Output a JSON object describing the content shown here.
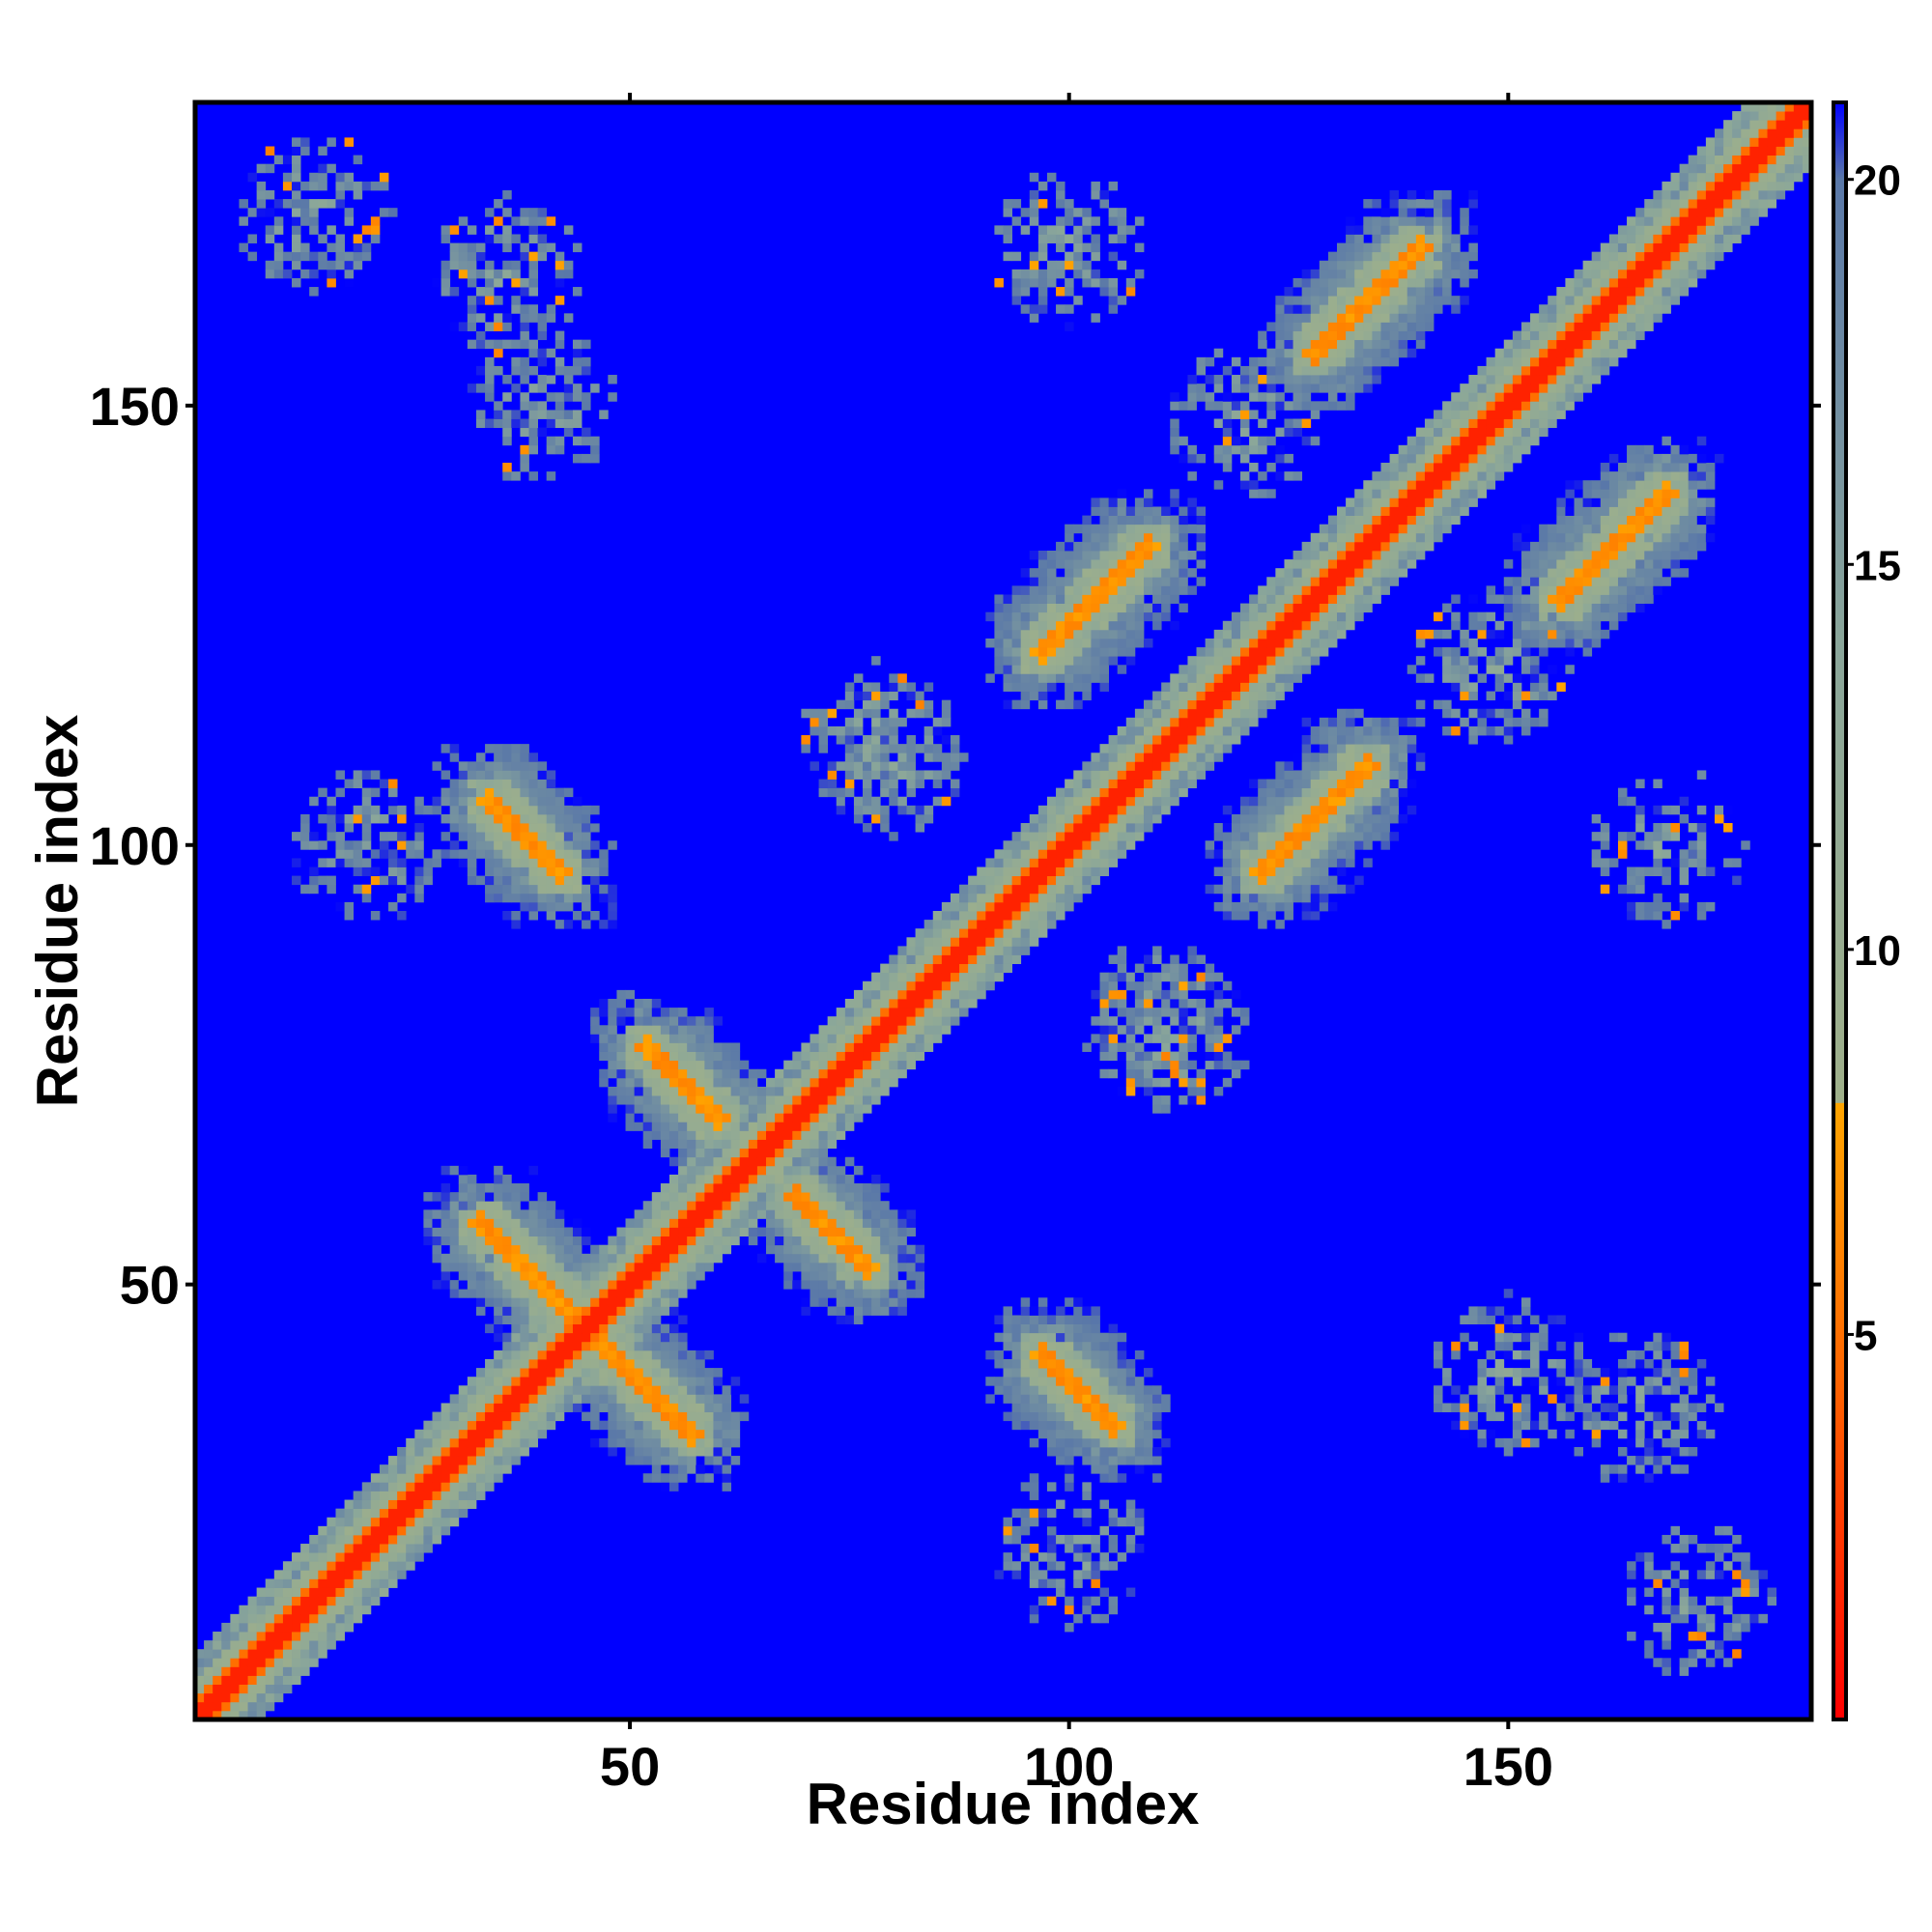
{
  "chart_data": {
    "type": "heatmap",
    "title": "",
    "xlabel": "Residue index",
    "ylabel": "Residue index",
    "xlim": [
      1,
      184
    ],
    "ylim": [
      1,
      184
    ],
    "x_ticks": [
      50,
      100,
      150
    ],
    "y_ticks": [
      50,
      100,
      150
    ],
    "n_residues": 184,
    "value_cap": 21,
    "colorbar": {
      "range": [
        0,
        21
      ],
      "ticks": [
        5,
        10,
        15,
        20
      ],
      "stops": [
        {
          "value": 0,
          "color": "#ff0000"
        },
        {
          "value": 4.5,
          "color": "#ff6600"
        },
        {
          "value": 8,
          "color": "#ffa500"
        },
        {
          "value": 8.01,
          "color": "#9fb08a"
        },
        {
          "value": 14,
          "color": "#8aa69a"
        },
        {
          "value": 20,
          "color": "#5a78a8"
        },
        {
          "value": 21,
          "color": "#0000ff"
        }
      ]
    },
    "background_color": "#0000ff",
    "contact_features": [
      {
        "kind": "diagonal"
      },
      {
        "kind": "antiparallel",
        "x_range": [
          33,
          57
        ],
        "y_range": [
          33,
          57
        ],
        "note": "X crossing near residue 45"
      },
      {
        "kind": "antiparallel",
        "x_range": [
          34,
          42
        ],
        "y_range": [
          97,
          105
        ]
      },
      {
        "kind": "antiparallel",
        "x_range": [
          52,
          60
        ],
        "y_range": [
          69,
          77
        ]
      },
      {
        "kind": "antiparallel",
        "x_range": [
          97,
          105
        ],
        "y_range": [
          34,
          42
        ]
      },
      {
        "kind": "antiparallel",
        "x_range": [
          69,
          77
        ],
        "y_range": [
          52,
          60
        ]
      },
      {
        "kind": "parallel",
        "x_range": [
          97,
          109
        ],
        "y_range": [
          122,
          134
        ]
      },
      {
        "kind": "parallel",
        "x_range": [
          122,
          134
        ],
        "y_range": [
          97,
          109
        ]
      },
      {
        "kind": "parallel",
        "x_range": [
          128,
          140
        ],
        "y_range": [
          156,
          168
        ]
      },
      {
        "kind": "parallel",
        "x_range": [
          156,
          168
        ],
        "y_range": [
          128,
          140
        ]
      },
      {
        "kind": "block",
        "center": [
          14,
          172
        ]
      },
      {
        "kind": "block",
        "center": [
          172,
          14
        ]
      },
      {
        "kind": "block",
        "center": [
          36,
          165
        ]
      },
      {
        "kind": "block",
        "center": [
          165,
          36
        ]
      },
      {
        "kind": "block",
        "center": [
          120,
          148
        ]
      },
      {
        "kind": "block",
        "center": [
          148,
          120
        ]
      },
      {
        "kind": "block",
        "center": [
          78,
          112
        ]
      },
      {
        "kind": "block",
        "center": [
          112,
          78
        ]
      },
      {
        "kind": "block",
        "center": [
          110,
          80
        ]
      },
      {
        "kind": "block",
        "center": [
          80,
          110
        ]
      },
      {
        "kind": "block",
        "center": [
          150,
          40
        ]
      },
      {
        "kind": "block",
        "center": [
          40,
          150
        ]
      },
      {
        "kind": "block",
        "center": [
          20,
          100
        ]
      },
      {
        "kind": "block",
        "center": [
          100,
          20
        ]
      },
      {
        "kind": "block",
        "center": [
          168,
          100
        ]
      },
      {
        "kind": "block",
        "center": [
          100,
          168
        ]
      }
    ]
  }
}
